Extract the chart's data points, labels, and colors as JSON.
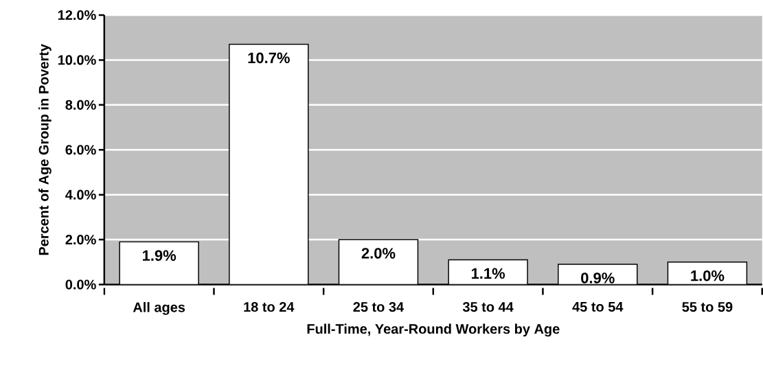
{
  "chart_data": {
    "type": "bar",
    "xlabel": "Full-Time, Year-Round Workers by Age",
    "ylabel": "Percent of Age Group in Poverty",
    "categories": [
      "All ages",
      "18 to 24",
      "25 to 34",
      "35 to 44",
      "45 to 54",
      "55 to 59"
    ],
    "values": [
      1.9,
      10.7,
      2.0,
      1.1,
      0.9,
      1.0
    ],
    "value_labels": [
      "1.9%",
      "10.7%",
      "2.0%",
      "1.1%",
      "0.9%",
      "1.0%"
    ],
    "color": "#ffffff",
    "ylim": [
      0,
      12
    ],
    "yticks": [
      {
        "value": 0,
        "label": "0.0%"
      },
      {
        "value": 2,
        "label": "2.0%"
      },
      {
        "value": 4,
        "label": "4.0%"
      },
      {
        "value": 6,
        "label": "6.0%"
      },
      {
        "value": 8,
        "label": "8.0%"
      },
      {
        "value": 10,
        "label": "10.0%"
      },
      {
        "value": 12,
        "label": "12.0%"
      }
    ],
    "grid": "y"
  }
}
